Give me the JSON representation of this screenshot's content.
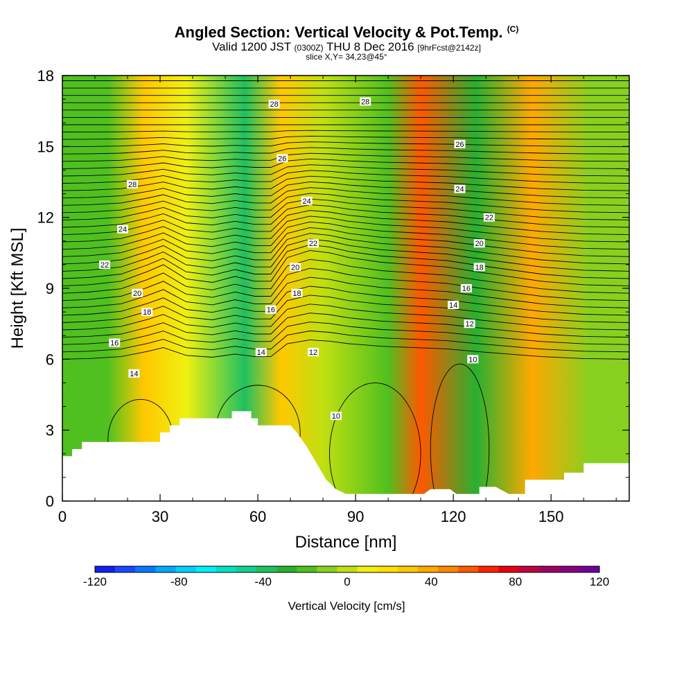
{
  "title": {
    "main": "Angled Section: Vertical Velocity & Pot.Temp.",
    "main_suffix": "(C)",
    "valid_prefix": "Valid 1200 JST",
    "valid_utc": "(0300Z)",
    "valid_date": "THU 8 Dec 2016",
    "forecast": "[9hrFcst@2142z]",
    "slice": "slice X,Y= 34,23@45°"
  },
  "chart_data": {
    "type": "heatmap",
    "xlabel": "Distance [nm]",
    "ylabel": "Height [Kft MSL]",
    "xlim": [
      0,
      174
    ],
    "ylim": [
      0,
      18
    ],
    "x_ticks": [
      "0",
      "30",
      "60",
      "90",
      "120",
      "150"
    ],
    "y_ticks": [
      "0",
      "3",
      "6",
      "9",
      "12",
      "15",
      "18"
    ],
    "colorbar": {
      "label": "Vertical Velocity [cm/s]",
      "range": [
        -120,
        120
      ],
      "tick_labels": [
        "-120",
        "-80",
        "-40",
        "0",
        "40",
        "80",
        "120"
      ],
      "colors": [
        "#1020f0",
        "#1848ff",
        "#0878ff",
        "#00a8ff",
        "#00d0ff",
        "#00f0f8",
        "#00e0c0",
        "#10d090",
        "#20c060",
        "#28b030",
        "#50c020",
        "#88d020",
        "#c0e010",
        "#f0f010",
        "#ffe000",
        "#ffc800",
        "#ffa800",
        "#ff8800",
        "#ff5800",
        "#ff2000",
        "#e80010",
        "#c00040",
        "#a00060",
        "#880080",
        "#700098"
      ]
    },
    "vertical_velocity_bands": [
      {
        "center_nm": 14,
        "vv": -18
      },
      {
        "center_nm": 25,
        "vv": 28
      },
      {
        "center_nm": 38,
        "vv": 6
      },
      {
        "center_nm": 56,
        "vv": -40
      },
      {
        "center_nm": 67,
        "vv": 30
      },
      {
        "center_nm": 80,
        "vv": 3
      },
      {
        "center_nm": 100,
        "vv": -22
      },
      {
        "center_nm": 110,
        "vv": 58
      },
      {
        "center_nm": 127,
        "vv": -25
      },
      {
        "center_nm": 144,
        "vv": 35
      },
      {
        "center_nm": 162,
        "vv": -8
      }
    ],
    "potential_temperature_labels": [
      {
        "text": "28",
        "x": 65,
        "y": 16.8
      },
      {
        "text": "28",
        "x": 93,
        "y": 16.9
      },
      {
        "text": "26",
        "x": 122,
        "y": 15.1
      },
      {
        "text": "28",
        "x": 21.5,
        "y": 13.4
      },
      {
        "text": "26",
        "x": 67.5,
        "y": 14.5
      },
      {
        "text": "24",
        "x": 122,
        "y": 13.2
      },
      {
        "text": "24",
        "x": 18.5,
        "y": 11.5
      },
      {
        "text": "24",
        "x": 75,
        "y": 12.7
      },
      {
        "text": "22",
        "x": 131,
        "y": 12.0
      },
      {
        "text": "22",
        "x": 13,
        "y": 10.0
      },
      {
        "text": "22",
        "x": 77,
        "y": 10.9
      },
      {
        "text": "20",
        "x": 128,
        "y": 10.9
      },
      {
        "text": "20",
        "x": 71.5,
        "y": 9.9
      },
      {
        "text": "18",
        "x": 128,
        "y": 9.9
      },
      {
        "text": "20",
        "x": 23,
        "y": 8.8
      },
      {
        "text": "18",
        "x": 72,
        "y": 8.8
      },
      {
        "text": "16",
        "x": 124,
        "y": 9.0
      },
      {
        "text": "18",
        "x": 26,
        "y": 8.0
      },
      {
        "text": "16",
        "x": 64,
        "y": 8.1
      },
      {
        "text": "14",
        "x": 120,
        "y": 8.3
      },
      {
        "text": "12",
        "x": 125,
        "y": 7.5
      },
      {
        "text": "16",
        "x": 16,
        "y": 6.7
      },
      {
        "text": "14",
        "x": 61,
        "y": 6.3
      },
      {
        "text": "12",
        "x": 77,
        "y": 6.3
      },
      {
        "text": "10",
        "x": 126,
        "y": 6.0
      },
      {
        "text": "14",
        "x": 22,
        "y": 5.4
      },
      {
        "text": "10",
        "x": 84,
        "y": 3.6
      }
    ]
  }
}
